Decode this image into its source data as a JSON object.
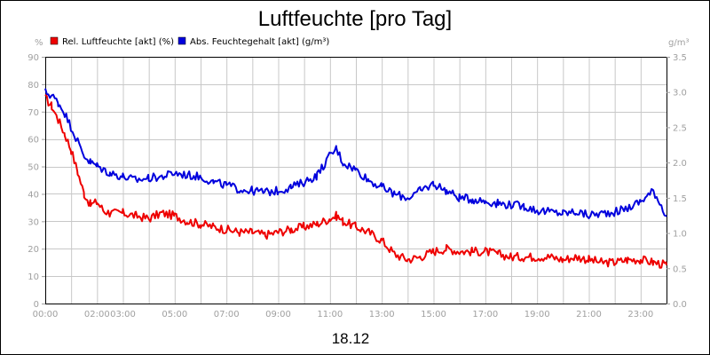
{
  "chart_data": {
    "type": "line",
    "title": "Luftfeuchte [pro Tag]",
    "date_label": "18.12",
    "y_left_unit": "%",
    "y_right_unit": "g/m³",
    "ylim_left": [
      0,
      90
    ],
    "ylim_right": [
      0,
      3.5
    ],
    "y_left_ticks": [
      "0",
      "10",
      "20",
      "30",
      "40",
      "50",
      "60",
      "70",
      "80",
      "90"
    ],
    "y_right_ticks": [
      "0.0",
      "0.5",
      "1.0",
      "1.5",
      "2.0",
      "2.5",
      "3.0",
      "3.5"
    ],
    "xlim_hours": [
      0,
      24
    ],
    "x_ticks": [
      {
        "hour": 0,
        "label": "00:00"
      },
      {
        "hour": 2,
        "label": "02:00"
      },
      {
        "hour": 3,
        "label": "03:00"
      },
      {
        "hour": 5,
        "label": "05:00"
      },
      {
        "hour": 7,
        "label": "07:00"
      },
      {
        "hour": 9,
        "label": "09:00"
      },
      {
        "hour": 11,
        "label": "11:00"
      },
      {
        "hour": 13,
        "label": "13:00"
      },
      {
        "hour": 15,
        "label": "15:00"
      },
      {
        "hour": 17,
        "label": "17:00"
      },
      {
        "hour": 19,
        "label": "19:00"
      },
      {
        "hour": 21,
        "label": "21:00"
      },
      {
        "hour": 23,
        "label": "23:00"
      }
    ],
    "grid": true,
    "legend_position": "top-left",
    "series": [
      {
        "name": "Rel. Luftfeuchte [akt] (%)",
        "color": "#ee0000",
        "axis": "left",
        "x": [
          0,
          0.25,
          0.5,
          0.75,
          1,
          1.25,
          1.5,
          1.75,
          2,
          2.25,
          2.5,
          3,
          3.5,
          4,
          4.5,
          5,
          5.5,
          6,
          6.5,
          7,
          7.5,
          8,
          8.5,
          9,
          9.5,
          10,
          10.5,
          11,
          11.25,
          11.5,
          12,
          12.5,
          13,
          13.5,
          14,
          14.5,
          15,
          15.5,
          16,
          16.5,
          17,
          17.5,
          18,
          18.5,
          19,
          19.5,
          20,
          20.5,
          21,
          21.5,
          22,
          22.5,
          23,
          23.5,
          24
        ],
        "y": [
          75,
          72,
          67,
          62,
          56,
          48,
          40,
          36,
          37,
          34,
          33,
          33,
          32,
          31,
          33,
          32,
          30,
          29,
          28,
          27,
          26,
          26,
          25,
          26,
          27,
          28,
          29,
          31,
          32,
          30,
          28,
          26,
          23,
          18,
          16,
          17,
          19,
          20,
          19,
          19,
          19,
          18,
          17,
          17,
          17,
          17,
          16,
          17,
          16,
          15,
          15,
          16,
          16,
          15,
          14
        ]
      },
      {
        "name": "Abs. Feuchtegehalt [akt] (g/m³)",
        "color": "#0000dd",
        "axis": "right",
        "x": [
          0,
          0.25,
          0.5,
          0.75,
          1,
          1.25,
          1.5,
          1.75,
          2,
          2.25,
          2.5,
          3,
          3.5,
          4,
          4.5,
          5,
          5.5,
          6,
          6.5,
          7,
          7.5,
          8,
          8.5,
          9,
          9.5,
          10,
          10.5,
          11,
          11.25,
          11.5,
          12,
          12.5,
          13,
          13.5,
          14,
          14.5,
          15,
          15.5,
          16,
          16.5,
          17,
          17.5,
          18,
          18.5,
          19,
          19.5,
          20,
          20.5,
          21,
          21.5,
          22,
          22.5,
          23,
          23.5,
          24
        ],
        "y": [
          3.0,
          2.95,
          2.85,
          2.7,
          2.5,
          2.3,
          2.1,
          2.0,
          1.95,
          1.9,
          1.85,
          1.8,
          1.75,
          1.78,
          1.8,
          1.85,
          1.82,
          1.8,
          1.72,
          1.68,
          1.62,
          1.6,
          1.58,
          1.6,
          1.65,
          1.72,
          1.82,
          2.1,
          2.2,
          2.0,
          1.9,
          1.75,
          1.65,
          1.55,
          1.5,
          1.6,
          1.7,
          1.6,
          1.5,
          1.48,
          1.45,
          1.42,
          1.4,
          1.38,
          1.32,
          1.3,
          1.28,
          1.3,
          1.25,
          1.28,
          1.3,
          1.35,
          1.45,
          1.6,
          1.25
        ]
      }
    ]
  }
}
